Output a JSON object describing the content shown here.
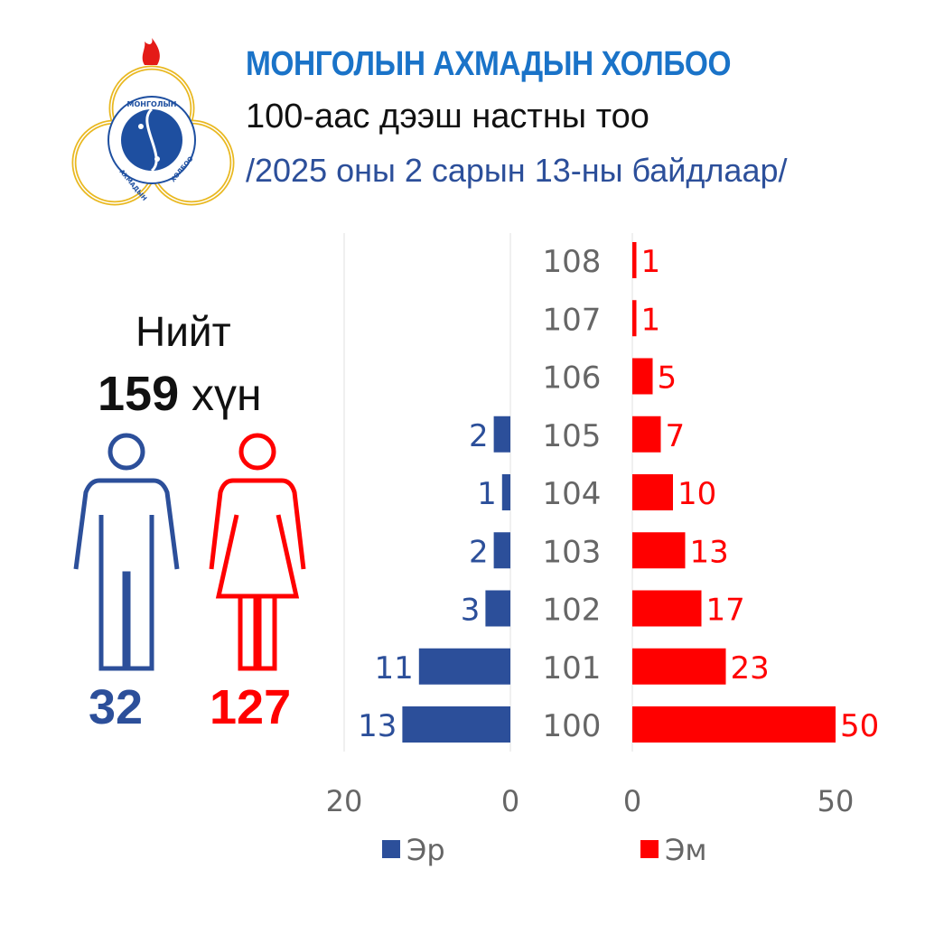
{
  "header": {
    "org_name": "МОНГОЛЫН АХМАДЫН ХОЛБОО",
    "title": "100-аас дээш настны тоо",
    "subtitle": "/2025 оны 2 сарын 13-ны байдлаар/"
  },
  "logo": {
    "text_top": "МОНГОЛЫН",
    "text_left": "АХМАДЫН",
    "text_right": "ХОЛБОО"
  },
  "summary": {
    "total_label": "Нийт",
    "total_value": "159",
    "total_unit": "хүн",
    "male_count": "32",
    "female_count": "127"
  },
  "colors": {
    "male": "#2c4f9a",
    "female": "#ff0000",
    "org": "#1a73c8"
  },
  "chart_data": {
    "type": "bar",
    "orientation": "horizontal-butterfly",
    "categories": [
      "108",
      "107",
      "106",
      "105",
      "104",
      "103",
      "102",
      "101",
      "100"
    ],
    "series": [
      {
        "name": "Эр",
        "values": [
          0,
          0,
          0,
          2,
          1,
          2,
          3,
          11,
          13
        ],
        "xlim": [
          0,
          20
        ],
        "ticks": [
          "20",
          "0"
        ]
      },
      {
        "name": "Эм",
        "values": [
          1,
          1,
          5,
          7,
          10,
          13,
          17,
          23,
          50
        ],
        "xlim": [
          0,
          50
        ],
        "ticks": [
          "0",
          "50"
        ]
      }
    ],
    "legend": "bottom"
  }
}
